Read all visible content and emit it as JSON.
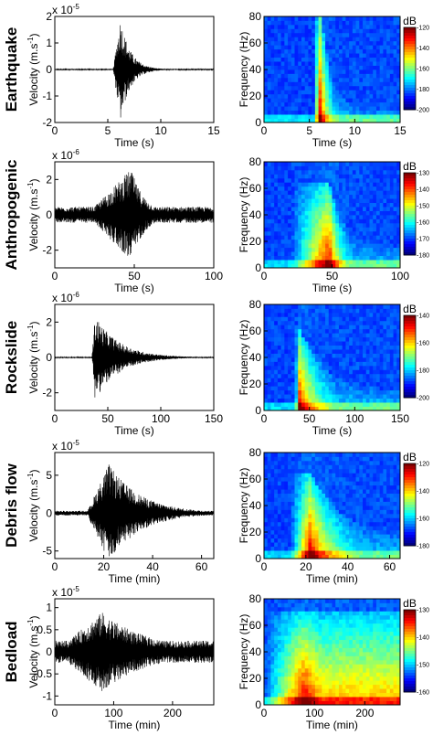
{
  "figure": {
    "rows": [
      {
        "label": "Earthquake",
        "waveform": {
          "multiplier": "x 10",
          "exponent": "-5",
          "xlabel": "Time (s)",
          "ylabel": "Velocity (m.s",
          "ylabel_sup": "-1",
          "ylabel_close": ")",
          "xlim": [
            0,
            15
          ],
          "ylim": [
            -2,
            2
          ],
          "xticks": [
            "0",
            "5",
            "10",
            "15"
          ],
          "yticks": [
            "-2",
            "-1",
            "0",
            "1",
            "2"
          ],
          "onset": 5.5,
          "peak_time": 6.2,
          "decay": 0.25,
          "peak_amp": 1.95,
          "noise": 0.02
        },
        "spectrogram": {
          "xlabel": "Time (s)",
          "ylabel": "Frequency (Hz)",
          "xlim": [
            0,
            15
          ],
          "ylim": [
            0,
            80
          ],
          "xticks": [
            "0",
            "5",
            "10",
            "15"
          ],
          "yticks": [
            "0",
            "20",
            "40",
            "60",
            "80"
          ],
          "colorbar_title": "dB",
          "colorbar_ticks": [
            "-120",
            "-140",
            "-160",
            "-180",
            "-200"
          ]
        }
      },
      {
        "label": "Anthropogenic",
        "waveform": {
          "multiplier": "x 10",
          "exponent": "-6",
          "xlabel": "Time (s)",
          "ylabel": "Velocity (m.s",
          "ylabel_sup": "-1",
          "ylabel_close": ")",
          "xlim": [
            0,
            100
          ],
          "ylim": [
            -3,
            3
          ],
          "xticks": [
            "0",
            "50",
            "100"
          ],
          "yticks": [
            "-2",
            "0",
            "2"
          ],
          "onset": 20,
          "peak_time": 48,
          "decay": 0.35,
          "peak_amp": 2.6,
          "noise": 0.45
        },
        "spectrogram": {
          "xlabel": "Time (s)",
          "ylabel": "Frequency (Hz)",
          "xlim": [
            0,
            100
          ],
          "ylim": [
            0,
            80
          ],
          "xticks": [
            "0",
            "50",
            "100"
          ],
          "yticks": [
            "0",
            "20",
            "40",
            "60",
            "80"
          ],
          "colorbar_title": "dB",
          "colorbar_ticks": [
            "-130",
            "-140",
            "-150",
            "-160",
            "-170",
            "-180"
          ]
        }
      },
      {
        "label": "Rockslide",
        "waveform": {
          "multiplier": "x 10",
          "exponent": "-6",
          "xlabel": "Time (s)",
          "ylabel": "Velocity (m.s",
          "ylabel_sup": "-1",
          "ylabel_close": ")",
          "xlim": [
            0,
            150
          ],
          "ylim": [
            -3,
            3
          ],
          "xticks": [
            "0",
            "50",
            "100",
            "150"
          ],
          "yticks": [
            "-2",
            "0",
            "2"
          ],
          "onset": 35,
          "peak_time": 38,
          "decay": 0.6,
          "peak_amp": 2.4,
          "noise": 0.03
        },
        "spectrogram": {
          "xlabel": "Time (s)",
          "ylabel": "Frequency (Hz)",
          "xlim": [
            0,
            150
          ],
          "ylim": [
            0,
            80
          ],
          "xticks": [
            "0",
            "50",
            "100",
            "150"
          ],
          "yticks": [
            "0",
            "20",
            "40",
            "60",
            "80"
          ],
          "colorbar_title": "dB",
          "colorbar_ticks": [
            "-140",
            "-160",
            "-180",
            "-200"
          ]
        }
      },
      {
        "label": "Debris flow",
        "waveform": {
          "multiplier": "x 10",
          "exponent": "-5",
          "xlabel": "Time (min)",
          "ylabel": "Velocity (m.s",
          "ylabel_sup": "-1",
          "ylabel_close": ")",
          "xlim": [
            0,
            65
          ],
          "ylim": [
            -6,
            8
          ],
          "xticks": [
            "0",
            "20",
            "40",
            "60"
          ],
          "yticks": [
            "-5",
            "0",
            "5"
          ],
          "onset": 13,
          "peak_time": 22,
          "decay": 0.8,
          "peak_amp": 6.5,
          "noise": 0.3
        },
        "spectrogram": {
          "xlabel": "Time (min)",
          "ylabel": "Frequency (Hz)",
          "xlim": [
            0,
            65
          ],
          "ylim": [
            0,
            80
          ],
          "xticks": [
            "0",
            "20",
            "40",
            "60"
          ],
          "yticks": [
            "0",
            "20",
            "40",
            "60",
            "80"
          ],
          "colorbar_title": "dB",
          "colorbar_ticks": [
            "-120",
            "-140",
            "-160",
            "-180"
          ]
        }
      },
      {
        "label": "Bedload",
        "waveform": {
          "multiplier": "x 10",
          "exponent": "-5",
          "xlabel": "Time (min)",
          "ylabel": "Velocity (m.s",
          "ylabel_sup": "-1",
          "ylabel_close": ")",
          "xlim": [
            0,
            270
          ],
          "ylim": [
            -1.2,
            1.2
          ],
          "xticks": [
            "0",
            "100",
            "200"
          ],
          "yticks": [
            "-1",
            "-0.5",
            "0",
            "0.5",
            "1"
          ],
          "onset": 0,
          "peak_time": 80,
          "decay": 1.2,
          "peak_amp": 0.9,
          "noise": 0.25
        },
        "spectrogram": {
          "xlabel": "Time (min)",
          "ylabel": "Frequency (Hz)",
          "xlim": [
            0,
            270
          ],
          "ylim": [
            0,
            80
          ],
          "xticks": [
            "0",
            "100",
            "200"
          ],
          "yticks": [
            "0",
            "20",
            "40",
            "60",
            "80"
          ],
          "colorbar_title": "dB",
          "colorbar_ticks": [
            "-130",
            "-140",
            "-150",
            "-160"
          ]
        }
      }
    ]
  },
  "chart_data": [
    {
      "type": "line",
      "row": "Earthquake",
      "xlabel": "Time (s)",
      "ylabel": "Velocity (m.s-1)",
      "xlim": [
        0,
        15
      ],
      "ylim": [
        -2,
        2
      ],
      "y_scale": "x 10^-5",
      "series": [
        {
          "values_envelope_peak": 1.95,
          "peak_time": 6.2
        }
      ]
    },
    {
      "type": "heatmap",
      "row": "Earthquake",
      "xlabel": "Time (s)",
      "ylabel": "Frequency (Hz)",
      "xlim": [
        0,
        15
      ],
      "ylim": [
        0,
        80
      ],
      "colorbar": "dB",
      "colorbar_range": [
        -200,
        -120
      ]
    },
    {
      "type": "line",
      "row": "Anthropogenic",
      "xlabel": "Time (s)",
      "ylabel": "Velocity (m.s-1)",
      "xlim": [
        0,
        100
      ],
      "ylim": [
        -3,
        3
      ],
      "y_scale": "x 10^-6",
      "series": [
        {
          "values_envelope_peak": 2.6,
          "peak_time": 48
        }
      ]
    },
    {
      "type": "heatmap",
      "row": "Anthropogenic",
      "xlabel": "Time (s)",
      "ylabel": "Frequency (Hz)",
      "xlim": [
        0,
        100
      ],
      "ylim": [
        0,
        80
      ],
      "colorbar": "dB",
      "colorbar_range": [
        -180,
        -130
      ]
    },
    {
      "type": "line",
      "row": "Rockslide",
      "xlabel": "Time (s)",
      "ylabel": "Velocity (m.s-1)",
      "xlim": [
        0,
        150
      ],
      "ylim": [
        -3,
        3
      ],
      "y_scale": "x 10^-6",
      "series": [
        {
          "values_envelope_peak": 2.4,
          "peak_time": 38
        }
      ]
    },
    {
      "type": "heatmap",
      "row": "Rockslide",
      "xlabel": "Time (s)",
      "ylabel": "Frequency (Hz)",
      "xlim": [
        0,
        150
      ],
      "ylim": [
        0,
        80
      ],
      "colorbar": "dB",
      "colorbar_range": [
        -200,
        -140
      ]
    },
    {
      "type": "line",
      "row": "Debris flow",
      "xlabel": "Time (min)",
      "ylabel": "Velocity (m.s-1)",
      "xlim": [
        0,
        65
      ],
      "ylim": [
        -6,
        8
      ],
      "y_scale": "x 10^-5",
      "series": [
        {
          "values_envelope_peak": 6.5,
          "peak_time": 22
        }
      ]
    },
    {
      "type": "heatmap",
      "row": "Debris flow",
      "xlabel": "Time (min)",
      "ylabel": "Frequency (Hz)",
      "xlim": [
        0,
        65
      ],
      "ylim": [
        0,
        80
      ],
      "colorbar": "dB",
      "colorbar_range": [
        -180,
        -120
      ]
    },
    {
      "type": "line",
      "row": "Bedload",
      "xlabel": "Time (min)",
      "ylabel": "Velocity (m.s-1)",
      "xlim": [
        0,
        270
      ],
      "ylim": [
        -1.2,
        1.2
      ],
      "y_scale": "x 10^-5",
      "series": [
        {
          "values_envelope_peak": 0.9,
          "peak_time": 80
        }
      ]
    },
    {
      "type": "heatmap",
      "row": "Bedload",
      "xlabel": "Time (min)",
      "ylabel": "Frequency (Hz)",
      "xlim": [
        0,
        270
      ],
      "ylim": [
        0,
        80
      ],
      "colorbar": "dB",
      "colorbar_range": [
        -160,
        -130
      ]
    }
  ]
}
